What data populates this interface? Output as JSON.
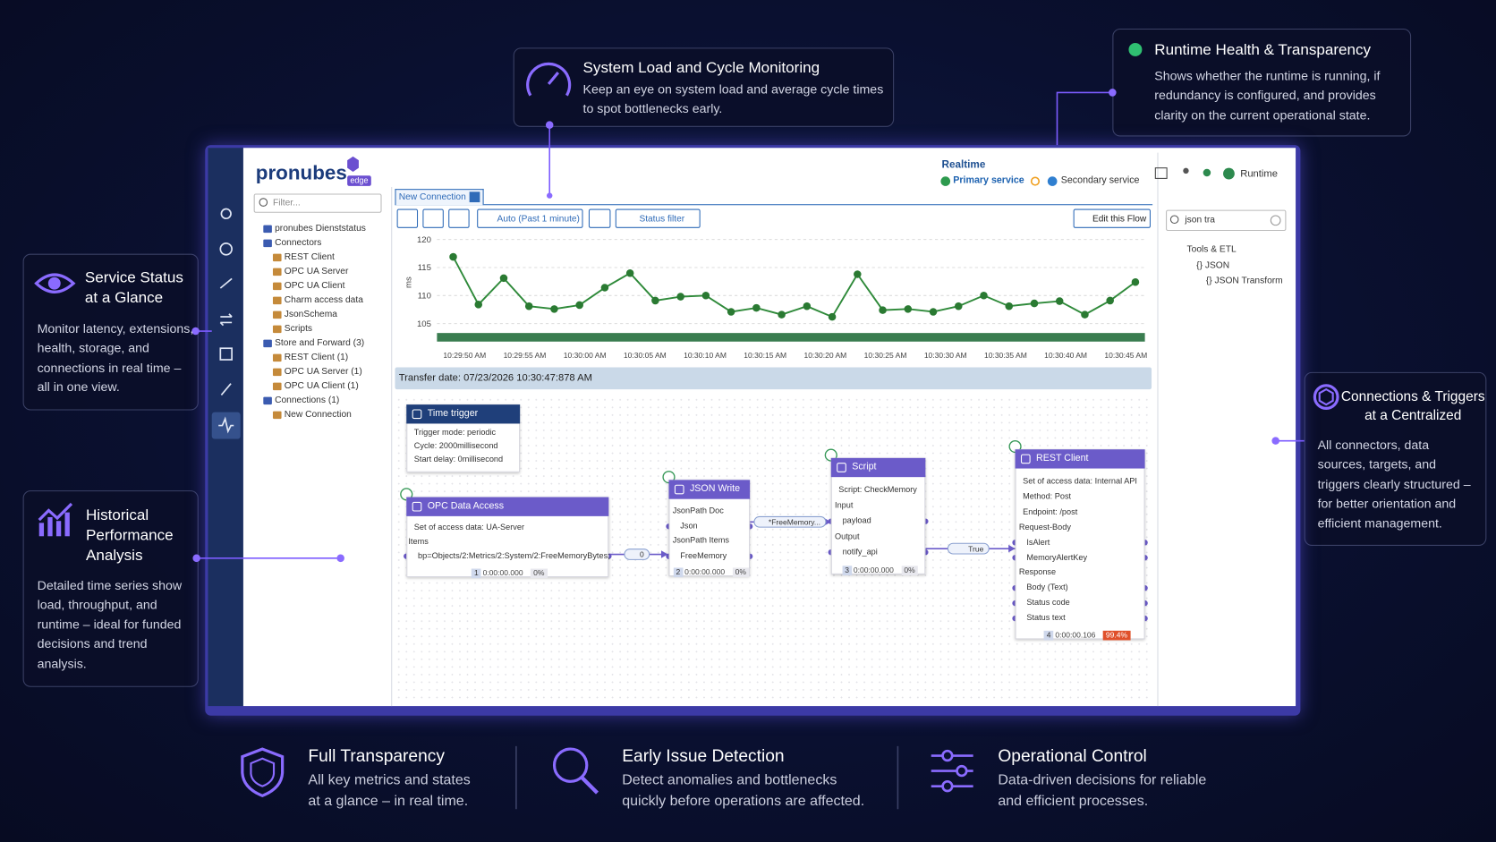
{
  "callouts": {
    "system_load": {
      "title": "System Load and Cycle Monitoring",
      "text": "Keep an eye on system load and average cycle times to spot bottlenecks early."
    },
    "runtime_health": {
      "title": "Runtime Health & Transparency",
      "text": "Shows whether the runtime is running, if redundancy is configured, and provides clarity on the current operational state."
    },
    "service_status": {
      "title": "Service Status at a Glance",
      "text": "Monitor latency, extensions, health, storage, and connections in real time – all in one view."
    },
    "historical": {
      "title": "Historical Performance Analysis",
      "text": "Detailed time series show load, throughput, and runtime – ideal for funded decisions and trend analysis."
    },
    "connections": {
      "title": "Connections & Triggers at a Centralized",
      "text": "All connectors, data sources, targets, and triggers clearly structured – for better orientation and efficient management."
    }
  },
  "features": [
    {
      "title": "Full Transparency",
      "text": "All key metrics and states at a glance – in real time."
    },
    {
      "title": "Early Issue Detection",
      "text": "Detect anomalies and bottlenecks quickly before operations are affected."
    },
    {
      "title": "Operational Control",
      "text": "Data-driven decisions for reliable and efficient processes."
    }
  ],
  "app": {
    "logo": "pronubes",
    "logo_badge": "edge",
    "realtime": "Realtime",
    "primary_service": "Primary service",
    "secondary_service": "Secondary service",
    "runtime": "Runtime",
    "filter_placeholder": "Filter...",
    "tree": [
      {
        "label": "pronubes Dienststatus"
      },
      {
        "label": "Connectors",
        "children": [
          {
            "label": "REST Client"
          },
          {
            "label": "OPC UA Server"
          },
          {
            "label": "OPC UA Client"
          },
          {
            "label": "Charm access data"
          },
          {
            "label": "JsonSchema"
          },
          {
            "label": "Scripts"
          }
        ]
      },
      {
        "label": "Store and Forward  (3)",
        "children": [
          {
            "label": "REST Client  (1)"
          },
          {
            "label": "OPC UA Server  (1)"
          },
          {
            "label": "OPC UA Client  (1)"
          }
        ]
      },
      {
        "label": "Connections  (1)",
        "children": [
          {
            "label": "New Connection"
          }
        ]
      }
    ],
    "tab": "New Connection",
    "toolbar": {
      "auto": "Auto (Past 1 minute)",
      "status_filter": "Status filter",
      "edit_flow": "Edit this Flow"
    },
    "search_value": "json tra",
    "search_tree": [
      {
        "label": "Tools & ETL",
        "children": [
          {
            "label": "{} JSON",
            "children": [
              {
                "label": "{} JSON Transform"
              }
            ]
          }
        ]
      }
    ],
    "transfer_date": "Transfer date: 07/23/2026 10:30:47:878 AM",
    "flow": {
      "nodes": [
        {
          "title": "Time trigger",
          "lines": [
            "Trigger mode: periodic",
            "Cycle: 2000millisecond",
            "Start delay: 0millisecond"
          ]
        },
        {
          "title": "OPC Data Access",
          "lines": [
            "Set of access data: UA-Server",
            "Items",
            "bp=Objects/2:Metrics/2:System/2:FreeMemoryBytes;"
          ],
          "index": 1,
          "time": "0:00:00.000",
          "load": "0%"
        },
        {
          "title": "JSON Write",
          "lines": [
            "JsonPath Doc",
            "Json",
            "JsonPath Items",
            "FreeMemory"
          ],
          "index": 2,
          "time": "0:00:00.000",
          "load": "0%"
        },
        {
          "title": "Script",
          "lines": [
            "Script: CheckMemory",
            "Input",
            "payload",
            "Output",
            "notify_api"
          ],
          "index": 3,
          "time": "0:00:00.000",
          "load": "0%"
        },
        {
          "title": "REST Client",
          "lines": [
            "Set of access data: Internal API",
            "Method: Post",
            "Endpoint: /post",
            "Request-Body",
            "IsAlert",
            "MemoryAlertKey",
            "Response",
            "Body (Text)",
            "Status code",
            "Status text"
          ],
          "index": 4,
          "time": "0:00:00.106",
          "load": "99.4%"
        }
      ],
      "edges": [
        {
          "label": "0"
        },
        {
          "label": "*FreeMemory..."
        },
        {
          "label": "True"
        }
      ]
    }
  },
  "chart_data": {
    "type": "line",
    "y_label": "ms",
    "x_labels": [
      "10:29:50 AM",
      "10:29:55 AM",
      "10:30:00 AM",
      "10:30:05 AM",
      "10:30:10 AM",
      "10:30:15 AM",
      "10:30:20 AM",
      "10:30:25 AM",
      "10:30:30 AM",
      "10:30:35 AM",
      "10:30:40 AM",
      "10:30:45 AM"
    ],
    "values": [
      116.9,
      108.4,
      113.1,
      108.1,
      107.6,
      108.3,
      111.4,
      114.0,
      109.1,
      109.8,
      110.0,
      107.1,
      107.8,
      106.6,
      108.1,
      106.2,
      113.8,
      107.4,
      107.6,
      107.1,
      108.1,
      110.0,
      108.1,
      108.6,
      109.0,
      106.6,
      109.1,
      112.4
    ],
    "color": "#2f8a3a",
    "ylim": [
      104,
      120
    ],
    "yticks": [
      105,
      110,
      115,
      120
    ],
    "grid": true
  }
}
